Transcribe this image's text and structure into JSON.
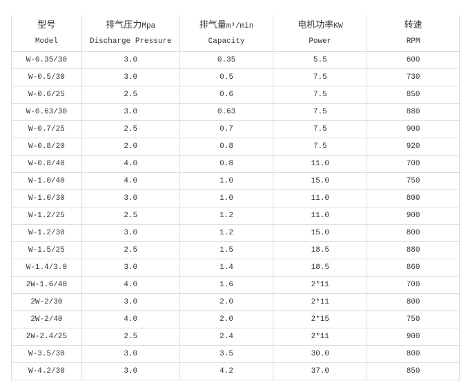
{
  "headers": [
    {
      "cn": "型号",
      "unit": "",
      "en": "Model"
    },
    {
      "cn": "排气压力",
      "unit": "Mpa",
      "en": "Discharge Pressure"
    },
    {
      "cn": "排气量",
      "unit": "m³/min",
      "en": "Capacity"
    },
    {
      "cn": "电机功率",
      "unit": "KW",
      "en": "Power"
    },
    {
      "cn": "转速",
      "unit": "",
      "en": "RPM"
    }
  ],
  "rows": [
    [
      "W-0.35/30",
      "3.0",
      "0.35",
      "5.5",
      "600"
    ],
    [
      "W-0.5/30",
      "3.0",
      "0.5",
      "7.5",
      "730"
    ],
    [
      "W-0.6/25",
      "2.5",
      "0.6",
      "7.5",
      "850"
    ],
    [
      "W-0.63/30",
      "3.0",
      "0.63",
      "7.5",
      "880"
    ],
    [
      "W-0.7/25",
      "2.5",
      "0.7",
      "7.5",
      "900"
    ],
    [
      "W-0.8/20",
      "2.0",
      "0.8",
      "7.5",
      "920"
    ],
    [
      "W-0.8/40",
      "4.0",
      "0.8",
      "11.0",
      "700"
    ],
    [
      "W-1.0/40",
      "4.0",
      "1.0",
      "15.0",
      "750"
    ],
    [
      "W-1.0/30",
      "3.0",
      "1.0",
      "11.0",
      "800"
    ],
    [
      "W-1.2/25",
      "2.5",
      "1.2",
      "11.0",
      "900"
    ],
    [
      "W-1.2/30",
      "3.0",
      "1.2",
      "15.0",
      "800"
    ],
    [
      "W-1.5/25",
      "2.5",
      "1.5",
      "18.5",
      "880"
    ],
    [
      "W-1.4/3.0",
      "3.0",
      "1.4",
      "18.5",
      "860"
    ],
    [
      "2W-1.6/40",
      "4.0",
      "1.6",
      "2*11",
      "700"
    ],
    [
      "2W-2/30",
      "3.0",
      "2.0",
      "2*11",
      "800"
    ],
    [
      "2W-2/40",
      "4.0",
      "2.0",
      "2*15",
      "750"
    ],
    [
      "2W-2.4/25",
      "2.5",
      "2.4",
      "2*11",
      "900"
    ],
    [
      "W-3.5/30",
      "3.0",
      "3.5",
      "30.0",
      "800"
    ],
    [
      "W-4.2/30",
      "3.0",
      "4.2",
      "37.0",
      "850"
    ]
  ]
}
